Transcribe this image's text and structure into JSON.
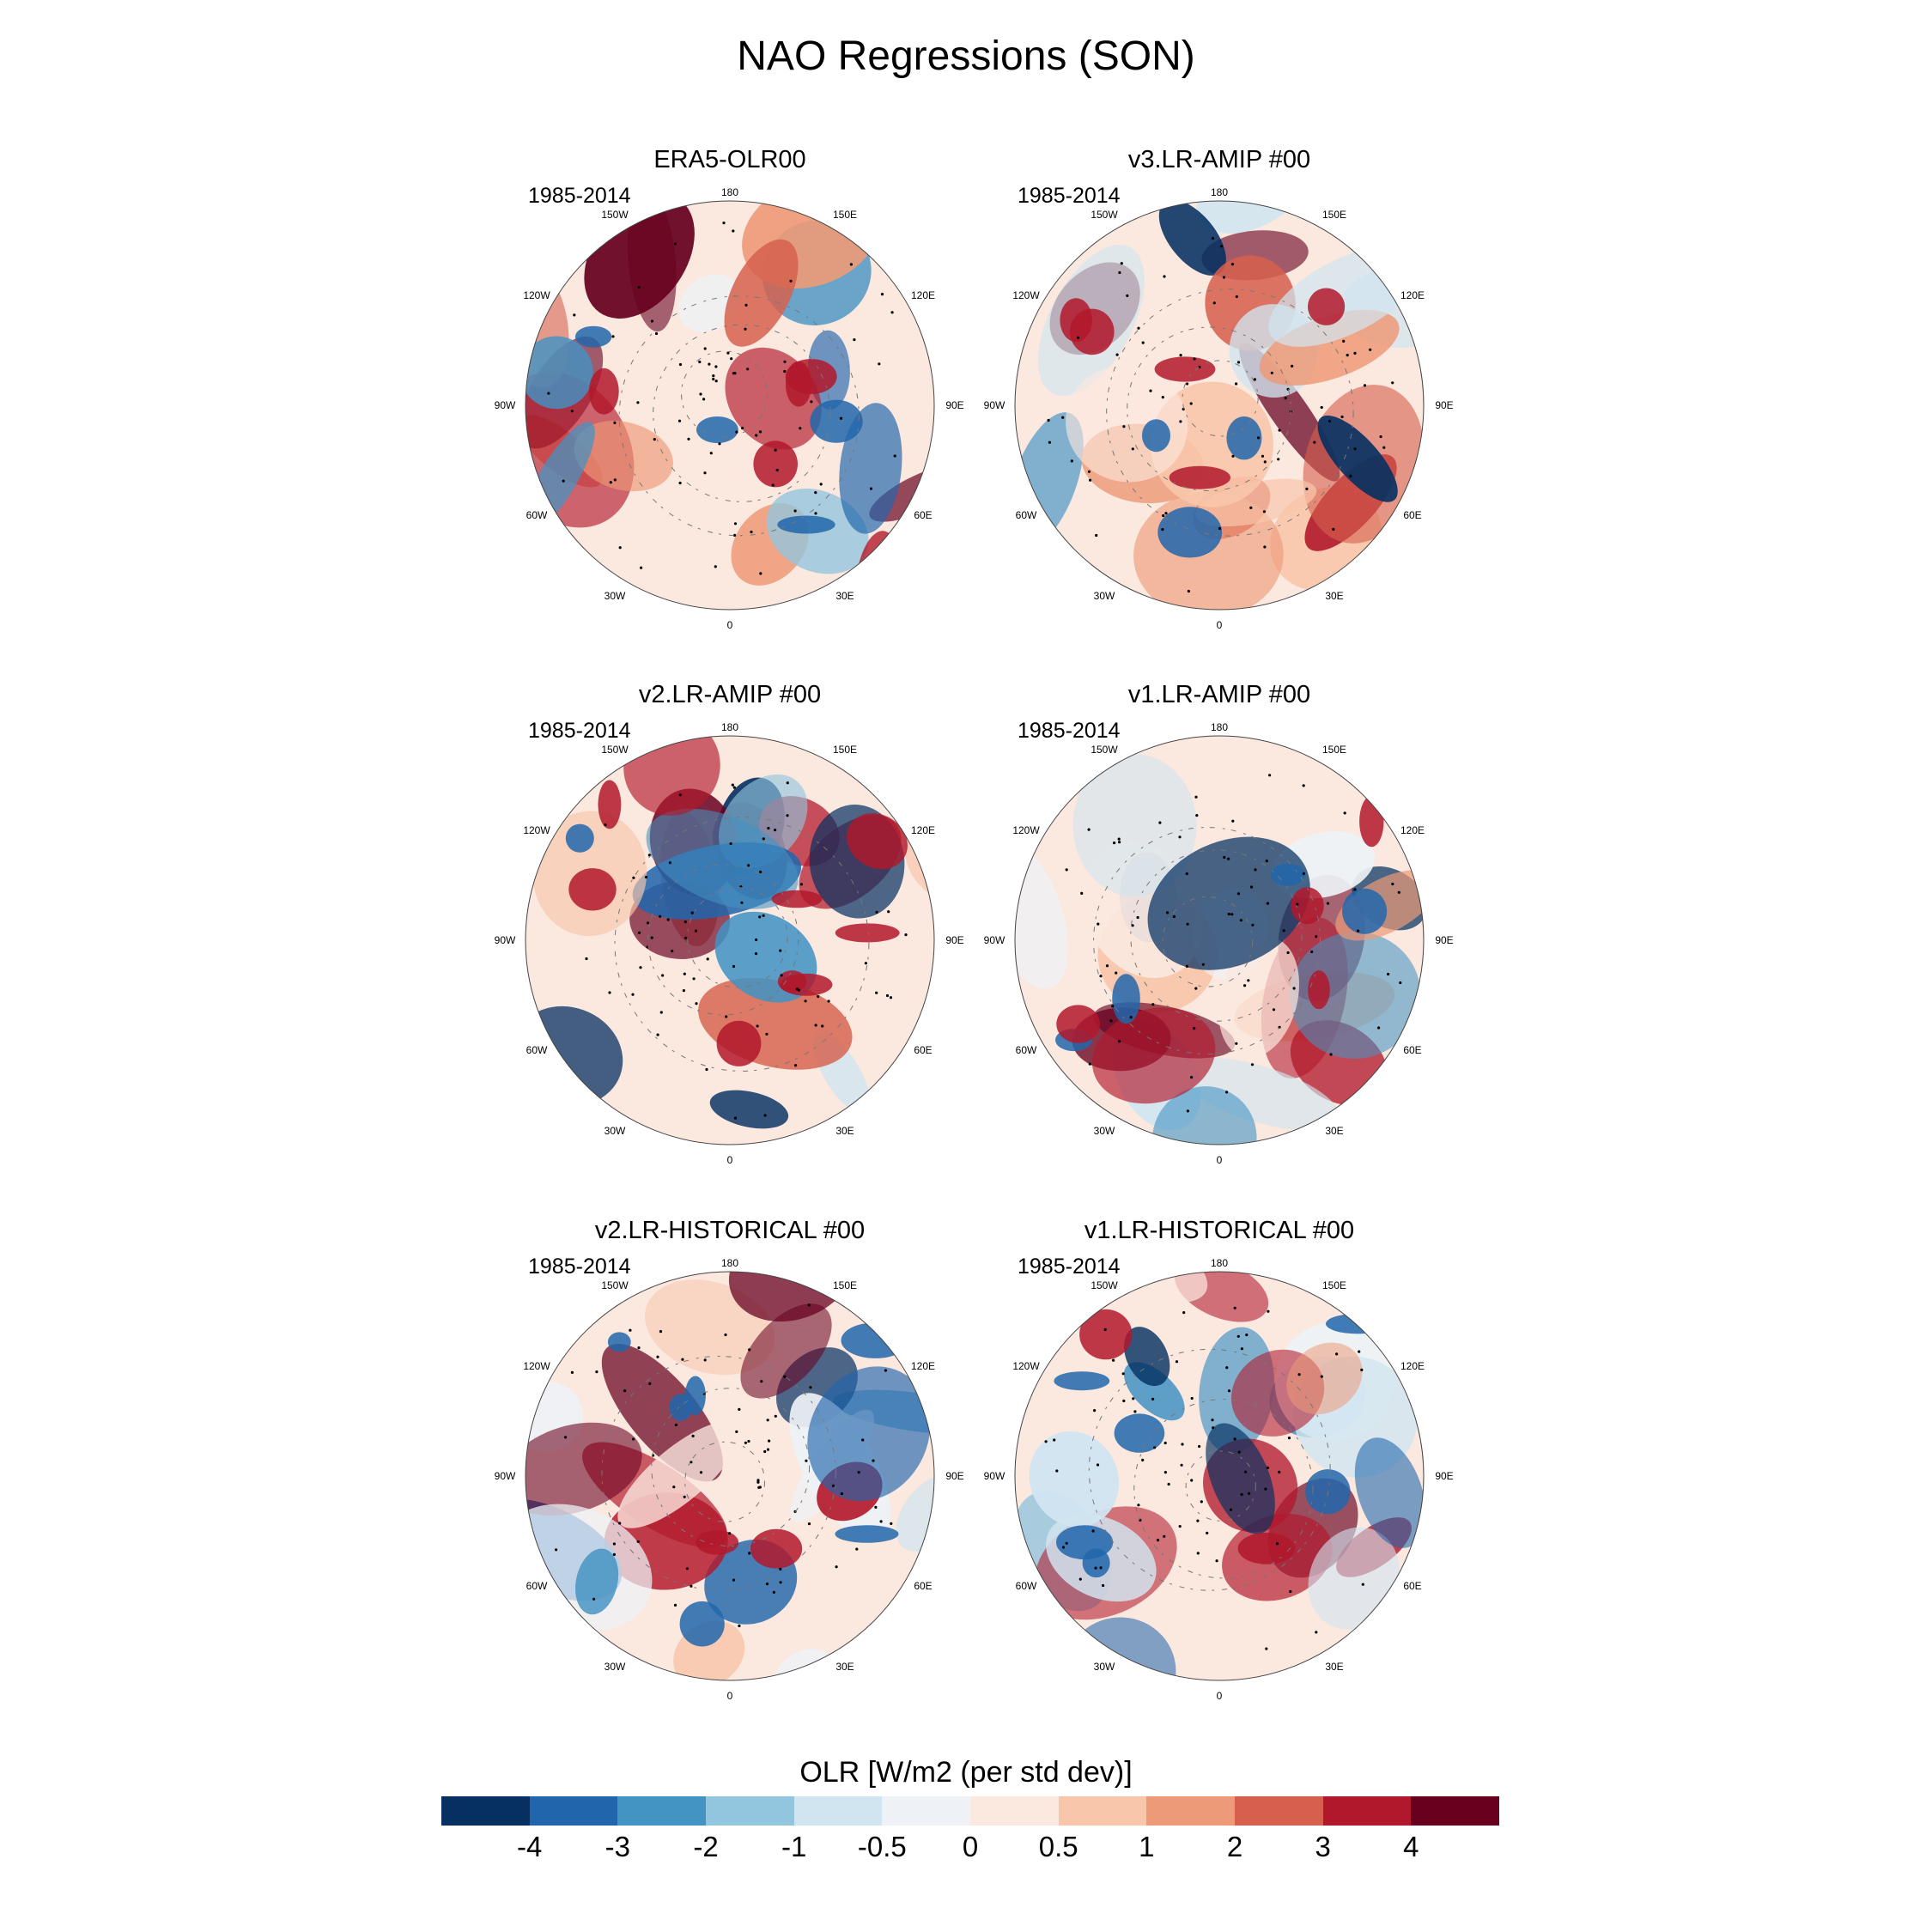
{
  "title": "NAO Regressions (SON)",
  "panels": [
    {
      "title": "ERA5-OLR00",
      "period": "1985-2014"
    },
    {
      "title": "v3.LR-AMIP  #00",
      "period": "1985-2014"
    },
    {
      "title": "v2.LR-AMIP  #00",
      "period": "1985-2014"
    },
    {
      "title": "v1.LR-AMIP  #00",
      "period": "1985-2014"
    },
    {
      "title": "v2.LR-HISTORICAL  #00",
      "period": "1985-2014"
    },
    {
      "title": "v1.LR-HISTORICAL  #00",
      "period": "1985-2014"
    }
  ],
  "lon_labels": [
    "180",
    "150E",
    "120E",
    "90E",
    "60E",
    "30E",
    "0",
    "30W",
    "60W",
    "90W",
    "120W",
    "150W"
  ],
  "colorbar": {
    "title": "OLR [W/m2 (per std dev)]",
    "ticks": [
      "-4",
      "-3",
      "-2",
      "-1",
      "-0.5",
      "0",
      "0.5",
      "1",
      "2",
      "3",
      "4"
    ],
    "colors": [
      "#053061",
      "#2166ac",
      "#4393c3",
      "#92c5de",
      "#d1e5f0",
      "#eef2f6",
      "#fbe8df",
      "#f8c6ab",
      "#ed9a78",
      "#d6604d",
      "#b2182b",
      "#67001f"
    ]
  },
  "chart_data": {
    "type": "heatmap",
    "title": "NAO Regressions (SON)",
    "variable": "OLR [W/m2 (per std dev)]",
    "levels": [
      -4,
      -3,
      -2,
      -1,
      -0.5,
      0,
      0.5,
      1,
      2,
      3,
      4
    ],
    "panels": [
      "ERA5-OLR00",
      "v3.LR-AMIP  #00",
      "v2.LR-AMIP  #00",
      "v1.LR-AMIP  #00",
      "v2.LR-HISTORICAL  #00",
      "v1.LR-HISTORICAL  #00"
    ],
    "period": "1985-2014"
  }
}
